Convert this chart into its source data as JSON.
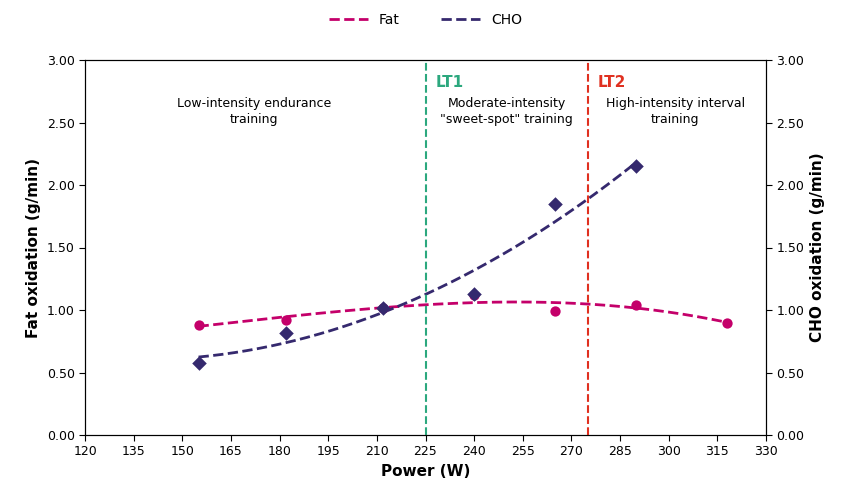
{
  "fat_x": [
    155,
    182,
    212,
    240,
    265,
    290,
    318
  ],
  "fat_y": [
    0.88,
    0.92,
    1.02,
    1.12,
    0.99,
    1.04,
    0.9
  ],
  "cho_x": [
    155,
    182,
    212,
    240,
    265,
    290
  ],
  "cho_y": [
    0.58,
    0.82,
    1.02,
    1.13,
    1.85,
    2.15
  ],
  "fat_color": "#C4006A",
  "cho_color": "#35296E",
  "lt1_x": 225,
  "lt2_x": 275,
  "lt1_color": "#2CA87E",
  "lt2_color": "#E03020",
  "xlim": [
    120,
    330
  ],
  "ylim": [
    0.0,
    3.0
  ],
  "xticks": [
    120,
    135,
    150,
    165,
    180,
    195,
    210,
    225,
    240,
    255,
    270,
    285,
    300,
    315,
    330
  ],
  "yticks": [
    0.0,
    0.5,
    1.0,
    1.5,
    2.0,
    2.5,
    3.0
  ],
  "xlabel": "Power (W)",
  "ylabel_left": "Fat oxidation (g/min)",
  "ylabel_right": "CHO oxidation (g/min)",
  "legend_fat": "Fat",
  "legend_cho": "CHO",
  "zone1_label": "Low-intensity endurance\ntraining",
  "zone2_label": "Moderate-intensity\n\"sweet-spot\" training",
  "zone3_label": "High-intensity interval\ntraining",
  "lt1_label": "LT1",
  "lt2_label": "LT2",
  "background_color": "#FFFFFF",
  "zone1_x": 172,
  "zone2_x": 250,
  "zone3_x": 302,
  "zone_y": 2.7
}
